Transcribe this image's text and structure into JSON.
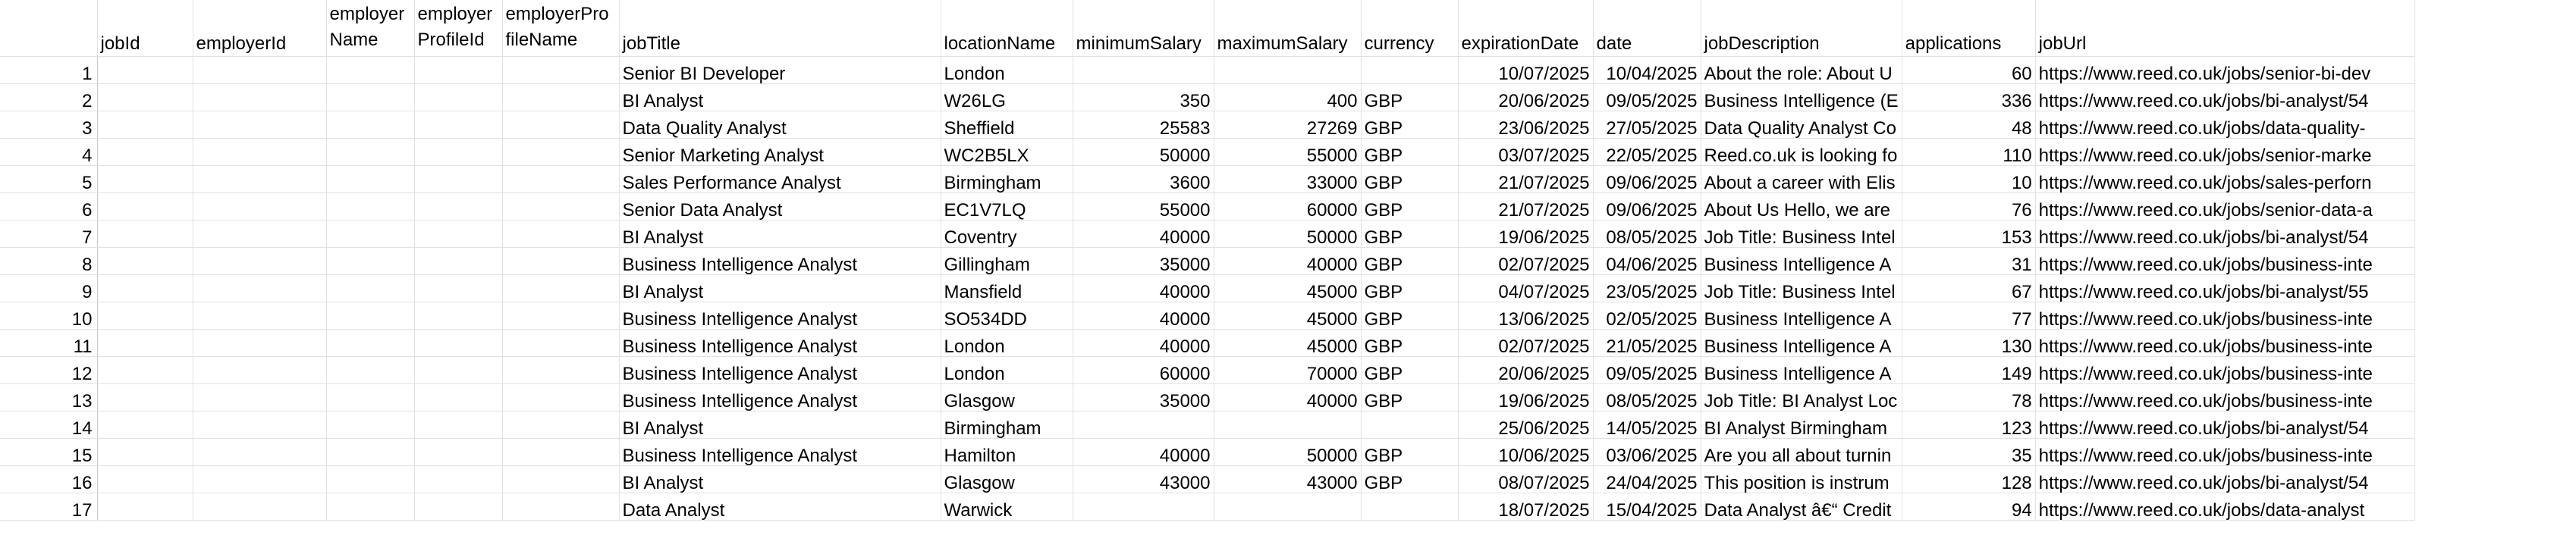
{
  "headers": [
    "",
    "jobId",
    "employerId",
    "employerName",
    "employerProfileId",
    "employerProfileName",
    "jobTitle",
    "locationName",
    "minimumSalary",
    "maximumSalary",
    "currency",
    "expirationDate",
    "date",
    "jobDescription",
    "applications",
    "jobUrl"
  ],
  "header_display": [
    "",
    "jobId",
    "employerId",
    "employer Name",
    "employer ProfileId",
    "employerPro fileName",
    "jobTitle",
    "locationName",
    "minimumSalary",
    "maximumSalary",
    "currency",
    "expirationDate",
    "date",
    "jobDescription",
    "applications",
    "jobUrl"
  ],
  "rows": [
    [
      "1",
      "",
      "",
      "",
      "",
      "",
      "Senior BI Developer",
      "London",
      "",
      "",
      "",
      "10/07/2025",
      "10/04/2025",
      "About the role: About U",
      "60",
      "https://www.reed.co.uk/jobs/senior-bi-dev"
    ],
    [
      "2",
      "",
      "",
      "",
      "",
      "",
      "BI Analyst",
      "W26LG",
      "350",
      "400",
      "GBP",
      "20/06/2025",
      "09/05/2025",
      "Business Intelligence (E",
      "336",
      "https://www.reed.co.uk/jobs/bi-analyst/54"
    ],
    [
      "3",
      "",
      "",
      "",
      "",
      "",
      "Data Quality Analyst",
      "Sheffield",
      "25583",
      "27269",
      "GBP",
      "23/06/2025",
      "27/05/2025",
      "Data Quality Analyst Co",
      "48",
      "https://www.reed.co.uk/jobs/data-quality-"
    ],
    [
      "4",
      "",
      "",
      "",
      "",
      "",
      "Senior Marketing Analyst",
      "WC2B5LX",
      "50000",
      "55000",
      "GBP",
      "03/07/2025",
      "22/05/2025",
      "Reed.co.uk is looking fo",
      "110",
      "https://www.reed.co.uk/jobs/senior-marke"
    ],
    [
      "5",
      "",
      "",
      "",
      "",
      "",
      "Sales Performance Analyst",
      "Birmingham",
      "3600",
      "33000",
      "GBP",
      "21/07/2025",
      "09/06/2025",
      "About a career with Elis",
      "10",
      "https://www.reed.co.uk/jobs/sales-perforn"
    ],
    [
      "6",
      "",
      "",
      "",
      "",
      "",
      "Senior Data Analyst",
      "EC1V7LQ",
      "55000",
      "60000",
      "GBP",
      "21/07/2025",
      "09/06/2025",
      "About Us Hello, we are",
      "76",
      "https://www.reed.co.uk/jobs/senior-data-a"
    ],
    [
      "7",
      "",
      "",
      "",
      "",
      "",
      "BI Analyst",
      "Coventry",
      "40000",
      "50000",
      "GBP",
      "19/06/2025",
      "08/05/2025",
      "Job Title: Business Intel",
      "153",
      "https://www.reed.co.uk/jobs/bi-analyst/54"
    ],
    [
      "8",
      "",
      "",
      "",
      "",
      "",
      "Business Intelligence Analyst",
      "Gillingham",
      "35000",
      "40000",
      "GBP",
      "02/07/2025",
      "04/06/2025",
      "Business Intelligence A",
      "31",
      "https://www.reed.co.uk/jobs/business-inte"
    ],
    [
      "9",
      "",
      "",
      "",
      "",
      "",
      "BI Analyst",
      "Mansfield",
      "40000",
      "45000",
      "GBP",
      "04/07/2025",
      "23/05/2025",
      "Job Title: Business Intel",
      "67",
      "https://www.reed.co.uk/jobs/bi-analyst/55"
    ],
    [
      "10",
      "",
      "",
      "",
      "",
      "",
      "Business Intelligence Analyst",
      "SO534DD",
      "40000",
      "45000",
      "GBP",
      "13/06/2025",
      "02/05/2025",
      "Business Intelligence A",
      "77",
      "https://www.reed.co.uk/jobs/business-inte"
    ],
    [
      "11",
      "",
      "",
      "",
      "",
      "",
      "Business Intelligence Analyst",
      "London",
      "40000",
      "45000",
      "GBP",
      "02/07/2025",
      "21/05/2025",
      "Business Intelligence A",
      "130",
      "https://www.reed.co.uk/jobs/business-inte"
    ],
    [
      "12",
      "",
      "",
      "",
      "",
      "",
      "Business Intelligence Analyst",
      "London",
      "60000",
      "70000",
      "GBP",
      "20/06/2025",
      "09/05/2025",
      "Business Intelligence A",
      "149",
      "https://www.reed.co.uk/jobs/business-inte"
    ],
    [
      "13",
      "",
      "",
      "",
      "",
      "",
      "Business Intelligence Analyst",
      "Glasgow",
      "35000",
      "40000",
      "GBP",
      "19/06/2025",
      "08/05/2025",
      "Job Title: BI Analyst Loc",
      "78",
      "https://www.reed.co.uk/jobs/business-inte"
    ],
    [
      "14",
      "",
      "",
      "",
      "",
      "",
      "BI Analyst",
      "Birmingham",
      "",
      "",
      "",
      "25/06/2025",
      "14/05/2025",
      "BI Analyst Birmingham",
      "123",
      "https://www.reed.co.uk/jobs/bi-analyst/54"
    ],
    [
      "15",
      "",
      "",
      "",
      "",
      "",
      "Business Intelligence Analyst",
      "Hamilton",
      "40000",
      "50000",
      "GBP",
      "10/06/2025",
      "03/06/2025",
      "Are you all about turnin",
      "35",
      "https://www.reed.co.uk/jobs/business-inte"
    ],
    [
      "16",
      "",
      "",
      "",
      "",
      "",
      "BI Analyst",
      "Glasgow",
      "43000",
      "43000",
      "GBP",
      "08/07/2025",
      "24/04/2025",
      "This position is instrum",
      "128",
      "https://www.reed.co.uk/jobs/bi-analyst/54"
    ],
    [
      "17",
      "",
      "",
      "",
      "",
      "",
      "Data Analyst",
      "Warwick",
      "",
      "",
      "",
      "18/07/2025",
      "15/04/2025",
      "Data Analyst â€“ Credit",
      "94",
      "https://www.reed.co.uk/jobs/data-analyst"
    ]
  ]
}
